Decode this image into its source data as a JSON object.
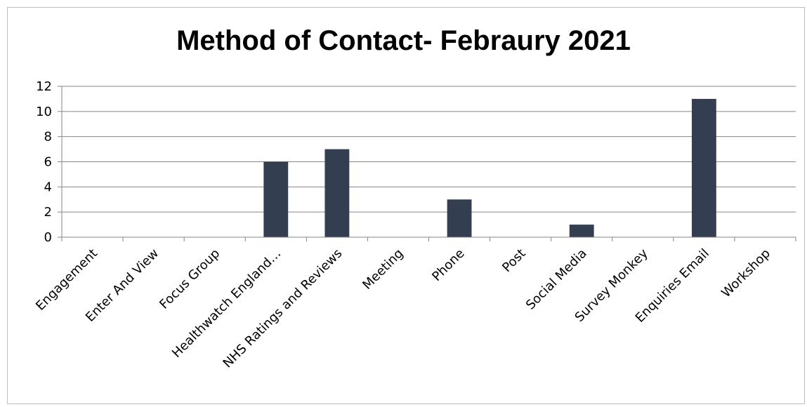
{
  "chart_data": {
    "type": "bar",
    "title": "Method of Contact- Febraury 2021",
    "xlabel": "",
    "ylabel": "",
    "categories": [
      "Engagement",
      "Enter And View",
      "Focus Group",
      "Healthwatch England…",
      "NHS Ratings and Reviews",
      "Meeting",
      "Phone",
      "Post",
      "Social Media",
      "Survey Monkey",
      "Enquiries Email",
      "Workshop"
    ],
    "values": [
      0,
      0,
      0,
      6,
      7,
      0,
      3,
      0,
      1,
      0,
      11,
      0
    ],
    "ylim": [
      0,
      12
    ],
    "yticks": [
      "0",
      "2",
      "4",
      "6",
      "8",
      "10",
      "12"
    ],
    "grid": true,
    "legend": "none",
    "bar_color": "#333f50",
    "grid_color": "#868686"
  }
}
